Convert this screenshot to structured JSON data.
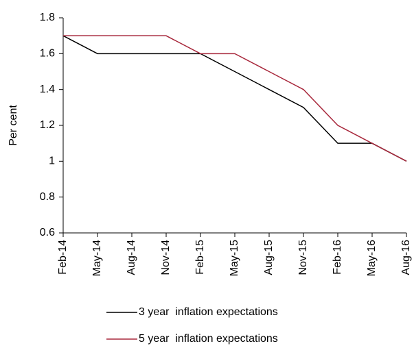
{
  "chart_data": {
    "type": "line",
    "y_label": "Per cent",
    "categories": [
      "Feb-14",
      "May-14",
      "Aug-14",
      "Nov-14",
      "Feb-15",
      "May-15",
      "Aug-15",
      "Nov-15",
      "Feb-16",
      "May-16",
      "Aug-16"
    ],
    "series": [
      {
        "name": "3 year  inflation expectations",
        "color": "#000000",
        "values": [
          1.7,
          1.6,
          1.6,
          1.6,
          1.6,
          1.5,
          1.4,
          1.3,
          1.1,
          1.1,
          1.0
        ]
      },
      {
        "name": "5 year  inflation expectations",
        "color": "#a8283c",
        "values": [
          1.7,
          1.7,
          1.7,
          1.7,
          1.6,
          1.6,
          1.5,
          1.4,
          1.2,
          1.1,
          1.0
        ]
      }
    ],
    "ylim": [
      0.6,
      1.8
    ],
    "yticks": [
      {
        "value": 0.6,
        "label": "0.6"
      },
      {
        "value": 0.8,
        "label": "0.8"
      },
      1,
      {
        "value": 1.2,
        "label": "1.2"
      },
      {
        "value": 1.4,
        "label": "1.4"
      },
      {
        "value": 1.6,
        "label": "1.6"
      },
      {
        "value": 1.8,
        "label": "1.8"
      }
    ],
    "grid": false,
    "legend": "bottom"
  }
}
